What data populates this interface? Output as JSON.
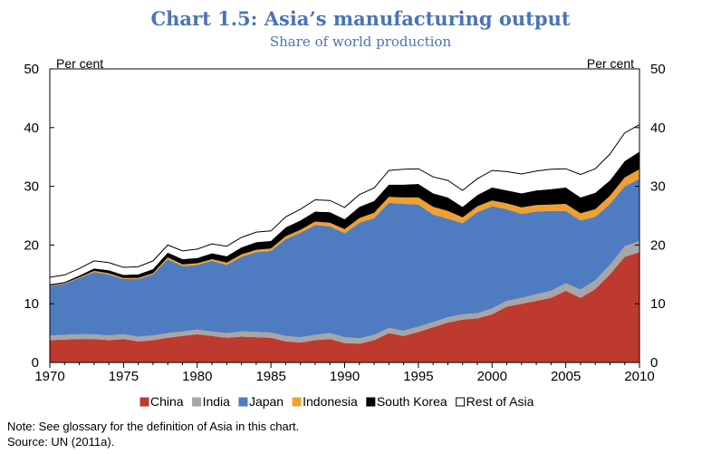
{
  "title": "Chart 1.5: Asia’s manufacturing output",
  "subtitle": "Share of world production",
  "note": "Note: See glossary for the definition of Asia in this chart.",
  "source": "Source: UN (2011a).",
  "colors": {
    "China": "#be3a2f",
    "India": "#a6a6a6",
    "Japan": "#4f7cc1",
    "Indonesia": "#f0a030",
    "South Korea": "#000000",
    "Rest of Asia": "#ffffff"
  },
  "chart_data": {
    "type": "area",
    "stacked": true,
    "ylabel_left": "Per cent",
    "ylabel_right": "Per cent",
    "ylim": [
      0,
      50
    ],
    "yticks": [
      0,
      10,
      20,
      30,
      40,
      50
    ],
    "xticks": [
      1970,
      1975,
      1980,
      1985,
      1990,
      1995,
      2000,
      2005,
      2010
    ],
    "x": [
      1970,
      1971,
      1972,
      1973,
      1974,
      1975,
      1976,
      1977,
      1978,
      1979,
      1980,
      1981,
      1982,
      1983,
      1984,
      1985,
      1986,
      1987,
      1988,
      1989,
      1990,
      1991,
      1992,
      1993,
      1994,
      1995,
      1996,
      1997,
      1998,
      1999,
      2000,
      2001,
      2002,
      2003,
      2004,
      2005,
      2006,
      2007,
      2008,
      2009,
      2010
    ],
    "legend_position": "bottom",
    "series": [
      {
        "name": "China",
        "values": [
          3.8,
          3.9,
          4.0,
          4.0,
          3.8,
          4.0,
          3.6,
          3.8,
          4.2,
          4.5,
          4.8,
          4.5,
          4.2,
          4.4,
          4.3,
          4.2,
          3.6,
          3.4,
          3.8,
          4.0,
          3.3,
          3.2,
          3.8,
          5.0,
          4.5,
          5.2,
          6.0,
          6.8,
          7.3,
          7.5,
          8.2,
          9.5,
          10.0,
          10.5,
          11.0,
          12.2,
          11.0,
          12.5,
          15.0,
          18.0,
          18.8
        ]
      },
      {
        "name": "India",
        "values": [
          0.8,
          0.8,
          0.8,
          0.8,
          0.8,
          0.8,
          0.8,
          0.8,
          0.8,
          0.8,
          0.8,
          0.8,
          0.8,
          0.9,
          0.9,
          0.9,
          0.9,
          0.9,
          0.9,
          1.0,
          1.0,
          0.9,
          0.9,
          0.9,
          0.9,
          0.9,
          0.9,
          0.9,
          0.9,
          0.9,
          1.0,
          1.0,
          1.0,
          1.1,
          1.2,
          1.3,
          1.4,
          1.5,
          1.6,
          1.8,
          1.9
        ]
      },
      {
        "name": "Japan",
        "values": [
          8.4,
          8.7,
          9.6,
          10.6,
          10.4,
          9.4,
          9.8,
          10.4,
          12.6,
          11.1,
          11.0,
          12.0,
          11.6,
          12.7,
          13.6,
          13.9,
          16.5,
          17.8,
          18.7,
          18.2,
          17.7,
          19.7,
          19.9,
          21.3,
          21.6,
          20.8,
          18.3,
          16.8,
          15.5,
          17.2,
          17.4,
          15.6,
          14.3,
          14.1,
          13.6,
          12.3,
          11.8,
          10.8,
          10.4,
          10.2,
          10.6
        ]
      },
      {
        "name": "Indonesia",
        "values": [
          0.1,
          0.1,
          0.1,
          0.2,
          0.2,
          0.2,
          0.2,
          0.2,
          0.3,
          0.3,
          0.3,
          0.3,
          0.4,
          0.4,
          0.4,
          0.4,
          0.5,
          0.5,
          0.6,
          0.6,
          0.7,
          0.8,
          0.9,
          1.0,
          1.1,
          1.2,
          1.3,
          1.3,
          1.0,
          1.0,
          1.0,
          1.0,
          1.1,
          1.1,
          1.1,
          1.2,
          1.2,
          1.3,
          1.4,
          1.5,
          1.6
        ]
      },
      {
        "name": "South Korea",
        "values": [
          0.2,
          0.2,
          0.3,
          0.4,
          0.5,
          0.5,
          0.6,
          0.7,
          0.8,
          0.9,
          0.9,
          1.0,
          1.1,
          1.2,
          1.3,
          1.3,
          1.5,
          1.6,
          1.7,
          1.8,
          1.7,
          1.9,
          2.0,
          2.1,
          2.2,
          2.3,
          2.3,
          2.3,
          1.8,
          1.9,
          2.2,
          2.2,
          2.4,
          2.5,
          2.6,
          2.8,
          2.7,
          2.8,
          2.6,
          2.8,
          3.0
        ]
      },
      {
        "name": "Rest of Asia",
        "values": [
          1.2,
          1.2,
          1.2,
          1.3,
          1.3,
          1.3,
          1.3,
          1.4,
          1.3,
          1.4,
          1.5,
          1.6,
          1.7,
          1.7,
          1.7,
          1.7,
          1.8,
          1.9,
          2.0,
          2.0,
          2.0,
          2.1,
          2.2,
          2.4,
          2.6,
          2.6,
          2.8,
          2.9,
          2.8,
          2.8,
          2.9,
          3.2,
          3.3,
          3.3,
          3.4,
          3.2,
          3.9,
          4.1,
          4.5,
          4.8,
          4.6
        ]
      }
    ]
  }
}
